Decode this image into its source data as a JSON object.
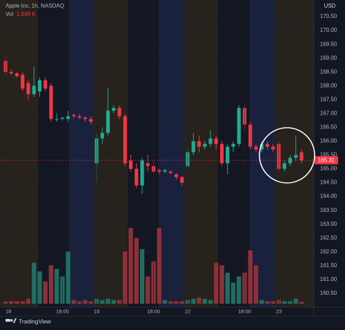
{
  "chart_data": {
    "type": "candlestick",
    "title": "Apple Inc, 1h, NASDAQ",
    "currency": "USD",
    "volume_name": "Vol",
    "volume_value_label": "1.649 K",
    "brand": "TradingView",
    "categories": [
      "18",
      null,
      null,
      null,
      null,
      null,
      null,
      null,
      null,
      null,
      "18:00",
      null,
      null,
      null,
      null,
      null,
      "19",
      null,
      null,
      null,
      null,
      null,
      null,
      null,
      null,
      null,
      "18:00",
      null,
      null,
      null,
      null,
      null,
      "22",
      null,
      null,
      null,
      null,
      null,
      null,
      null,
      null,
      null,
      "18:00",
      null,
      null,
      null,
      null,
      null,
      "23",
      null,
      null,
      null,
      null
    ],
    "open": [
      168.9,
      168.5,
      168.45,
      168.4,
      168.1,
      167.7,
      167.8,
      168.2,
      168.0,
      166.8,
      166.8,
      166.8,
      166.95,
      166.9,
      166.85,
      166.8,
      165.2,
      166.1,
      166.3,
      167.1,
      167.2,
      166.9,
      165.3,
      165.0,
      164.4,
      165.2,
      165.1,
      164.95,
      164.9,
      164.9,
      164.8,
      164.7,
      165.1,
      165.6,
      166.0,
      165.8,
      165.9,
      166.1,
      165.9,
      165.2,
      165.8,
      165.9,
      167.2,
      166.6,
      165.8,
      165.7,
      165.9,
      165.8,
      165.9,
      165.0,
      165.2,
      165.4,
      165.6
    ],
    "high": [
      169.1,
      168.6,
      168.5,
      168.5,
      168.2,
      168.7,
      168.3,
      168.3,
      168.1,
      167.0,
      166.9,
      167.1,
      167.0,
      167.0,
      166.9,
      166.9,
      166.3,
      166.5,
      167.9,
      167.3,
      167.3,
      167.0,
      165.5,
      165.2,
      165.4,
      165.5,
      165.3,
      165.0,
      165.0,
      164.95,
      164.85,
      164.75,
      165.8,
      166.3,
      166.2,
      166.0,
      166.4,
      166.2,
      166.0,
      165.9,
      166.0,
      167.3,
      167.3,
      166.7,
      165.9,
      166.0,
      166.0,
      165.9,
      166.0,
      165.3,
      165.5,
      166.2,
      165.7
    ],
    "low": [
      168.4,
      168.4,
      168.3,
      167.8,
      167.5,
      167.6,
      167.6,
      167.8,
      166.7,
      166.7,
      166.7,
      166.7,
      166.8,
      166.8,
      166.7,
      166.6,
      164.5,
      165.9,
      166.2,
      167.0,
      166.8,
      165.1,
      164.9,
      164.3,
      164.1,
      164.9,
      164.8,
      164.8,
      164.85,
      164.8,
      164.6,
      164.4,
      165.0,
      165.5,
      165.6,
      165.7,
      165.8,
      165.7,
      165.1,
      164.8,
      165.6,
      165.8,
      166.4,
      165.7,
      165.6,
      165.6,
      165.7,
      165.6,
      164.9,
      164.9,
      165.1,
      165.3,
      165.2
    ],
    "close": [
      168.5,
      168.45,
      168.35,
      167.9,
      167.7,
      168.0,
      168.2,
      167.9,
      166.8,
      166.8,
      166.85,
      166.9,
      166.9,
      166.85,
      166.8,
      166.7,
      166.1,
      166.3,
      167.1,
      167.2,
      166.9,
      165.2,
      165.0,
      164.4,
      165.3,
      165.1,
      164.9,
      164.9,
      164.95,
      164.85,
      164.7,
      164.5,
      165.6,
      166.0,
      165.8,
      165.9,
      166.1,
      165.9,
      165.2,
      165.8,
      165.9,
      167.2,
      166.6,
      165.8,
      165.7,
      165.9,
      165.8,
      165.7,
      165.0,
      165.2,
      165.4,
      165.5,
      165.3
    ],
    "volume": [
      2,
      2,
      2,
      2,
      4,
      33,
      26,
      18,
      31,
      28,
      22,
      42,
      3,
      2,
      3,
      2,
      4,
      3,
      4,
      3,
      3,
      42,
      61,
      53,
      44,
      22,
      34,
      61,
      3,
      2,
      2,
      2,
      3,
      4,
      5,
      4,
      3,
      33,
      31,
      25,
      17,
      22,
      25,
      43,
      31,
      3,
      2,
      2,
      3,
      2,
      2,
      4,
      1.649
    ],
    "volume_ylim": [
      0,
      100
    ],
    "up_color": "#22ab94",
    "down_color": "#f23645",
    "volume_up_color": "#1f6e63",
    "volume_down_color": "#8e3038",
    "last_price": 165.31,
    "ylim": [
      160.0,
      171.1
    ],
    "yticks": [
      {
        "value": 170.5,
        "label": "170.50"
      },
      {
        "value": 170,
        "label": "170.00"
      },
      {
        "value": 169.5,
        "label": "169.50"
      },
      {
        "value": 169,
        "label": "169.00"
      },
      {
        "value": 168.5,
        "label": "168.50"
      },
      {
        "value": 168,
        "label": "168.00"
      },
      {
        "value": 167.5,
        "label": "167.50"
      },
      {
        "value": 167,
        "label": "167.00"
      },
      {
        "value": 166.5,
        "label": "166.50"
      },
      {
        "value": 166,
        "label": "166.00"
      },
      {
        "value": 165.5,
        "label": "165.50"
      },
      {
        "value": 165,
        "label": "165.00"
      },
      {
        "value": 164.5,
        "label": "164.50"
      },
      {
        "value": 164,
        "label": "164.00"
      },
      {
        "value": 163.5,
        "label": "163.50"
      },
      {
        "value": 163,
        "label": "163.00"
      },
      {
        "value": 162.5,
        "label": "162.50"
      },
      {
        "value": 162,
        "label": "162.00"
      },
      {
        "value": 161.5,
        "label": "161.50"
      },
      {
        "value": 161,
        "label": "161.00"
      },
      {
        "value": 160.5,
        "label": "160.50"
      }
    ]
  }
}
